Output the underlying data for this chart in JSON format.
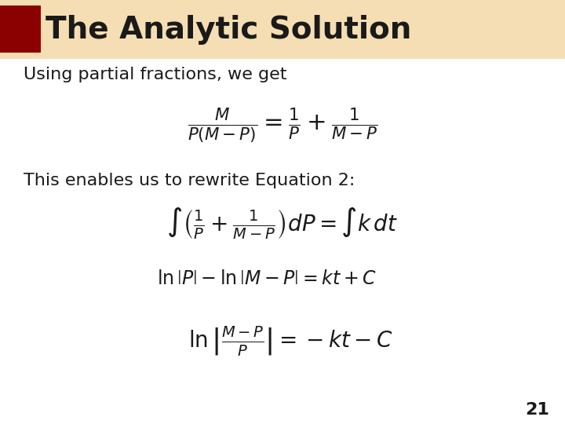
{
  "title": "The Analytic Solution",
  "title_bg_color": "#F5DEB3",
  "title_fg_color": "#1a1a1a",
  "title_rect_color": "#8B0000",
  "bg_color": "#FFFFFF",
  "text1": "Using partial fractions, we get",
  "text2": "This enables us to rewrite Equation 2:",
  "eq1": "\\frac{M}{P(M - P)} = \\frac{1}{P} + \\frac{1}{M - P}",
  "eq2": "\\int \\left( \\frac{1}{P} + \\frac{1}{M - P} \\right) dP = \\int k\\, dt",
  "eq3": "\\ln \\left| P \\right| - \\ln \\left| M - P \\right| = kt + C",
  "eq4": "\\ln \\left| \\frac{M - P}{P} \\right| = -kt - C",
  "slide_number": "21",
  "title_fontsize": 28,
  "text_fontsize": 16,
  "eq_fontsize": 18,
  "small_eq_fontsize": 16,
  "slide_num_fontsize": 16
}
